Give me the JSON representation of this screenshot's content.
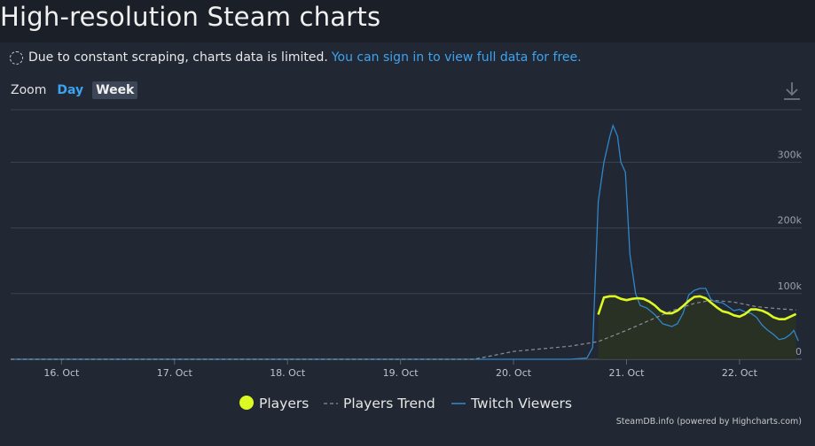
{
  "page": {
    "title": "High-resolution Steam charts"
  },
  "notice": {
    "text": "Due to constant scraping, charts data is limited.",
    "link": "You can sign in to view full data for free."
  },
  "zoom": {
    "label": "Zoom",
    "day": "Day",
    "week": "Week",
    "selected": "Week"
  },
  "icons": {
    "download": "download-icon",
    "notice": "loading-circle-icon"
  },
  "credit": "SteamDB.info (powered by Highcharts.com)",
  "colors": {
    "players": "#dcfa22",
    "trend": "#8a8f96",
    "twitch": "#2f86c9",
    "link": "#3da3f0",
    "background": "#1b2028",
    "plot": "#212833"
  },
  "chart_data": {
    "type": "line",
    "x_ticks": [
      "16. Oct",
      "17. Oct",
      "18. Oct",
      "19. Oct",
      "20. Oct",
      "21. Oct",
      "22. Oct"
    ],
    "y_ticks": [
      "0",
      "100k",
      "200k",
      "300k"
    ],
    "ylim": [
      0,
      380000
    ],
    "xlim": [
      15.55,
      22.55
    ],
    "grid": true,
    "legend": "bottom",
    "series": [
      {
        "name": "Players",
        "style": "line-area",
        "points": [
          [
            20.75,
            68000
          ],
          [
            20.8,
            94000
          ],
          [
            20.85,
            96000
          ],
          [
            20.9,
            96000
          ],
          [
            20.95,
            92000
          ],
          [
            21.0,
            90000
          ],
          [
            21.05,
            92000
          ],
          [
            21.1,
            93000
          ],
          [
            21.15,
            92000
          ],
          [
            21.2,
            88000
          ],
          [
            21.25,
            82000
          ],
          [
            21.3,
            74000
          ],
          [
            21.35,
            70000
          ],
          [
            21.4,
            70000
          ],
          [
            21.45,
            74000
          ],
          [
            21.5,
            81000
          ],
          [
            21.55,
            89000
          ],
          [
            21.6,
            95000
          ],
          [
            21.65,
            96000
          ],
          [
            21.7,
            93000
          ],
          [
            21.75,
            86000
          ],
          [
            21.8,
            79000
          ],
          [
            21.85,
            73000
          ],
          [
            21.9,
            71000
          ],
          [
            21.95,
            67000
          ],
          [
            22.0,
            65000
          ],
          [
            22.05,
            69000
          ],
          [
            22.1,
            76000
          ],
          [
            22.15,
            76000
          ],
          [
            22.2,
            74000
          ],
          [
            22.25,
            70000
          ],
          [
            22.3,
            64000
          ],
          [
            22.35,
            61000
          ],
          [
            22.4,
            61000
          ],
          [
            22.45,
            65000
          ],
          [
            22.5,
            69000
          ]
        ]
      },
      {
        "name": "Players Trend",
        "style": "dashed",
        "points": [
          [
            15.55,
            0
          ],
          [
            19.65,
            0
          ],
          [
            20.0,
            12000
          ],
          [
            20.5,
            20000
          ],
          [
            20.75,
            27000
          ],
          [
            21.0,
            44000
          ],
          [
            21.2,
            59000
          ],
          [
            21.4,
            74000
          ],
          [
            21.6,
            85000
          ],
          [
            21.75,
            90000
          ],
          [
            21.95,
            87000
          ],
          [
            22.15,
            80000
          ],
          [
            22.35,
            77000
          ],
          [
            22.5,
            75000
          ]
        ]
      },
      {
        "name": "Twitch Viewers",
        "style": "line",
        "points": [
          [
            15.55,
            0
          ],
          [
            20.5,
            0
          ],
          [
            20.65,
            2000
          ],
          [
            20.7,
            18000
          ],
          [
            20.75,
            240000
          ],
          [
            20.8,
            300000
          ],
          [
            20.85,
            338000
          ],
          [
            20.88,
            356000
          ],
          [
            20.92,
            340000
          ],
          [
            20.95,
            300000
          ],
          [
            20.99,
            285000
          ],
          [
            21.03,
            160000
          ],
          [
            21.08,
            100000
          ],
          [
            21.12,
            82000
          ],
          [
            21.18,
            78000
          ],
          [
            21.25,
            68000
          ],
          [
            21.32,
            54000
          ],
          [
            21.4,
            50000
          ],
          [
            21.45,
            54000
          ],
          [
            21.5,
            70000
          ],
          [
            21.55,
            98000
          ],
          [
            21.6,
            105000
          ],
          [
            21.65,
            108000
          ],
          [
            21.7,
            108000
          ],
          [
            21.75,
            90000
          ],
          [
            21.8,
            87000
          ],
          [
            21.85,
            86000
          ],
          [
            21.9,
            80000
          ],
          [
            21.95,
            74000
          ],
          [
            22.0,
            76000
          ],
          [
            22.05,
            72000
          ],
          [
            22.1,
            70000
          ],
          [
            22.15,
            64000
          ],
          [
            22.2,
            52000
          ],
          [
            22.25,
            44000
          ],
          [
            22.3,
            38000
          ],
          [
            22.35,
            30000
          ],
          [
            22.4,
            32000
          ],
          [
            22.45,
            38000
          ],
          [
            22.48,
            44000
          ],
          [
            22.52,
            28000
          ]
        ]
      }
    ]
  }
}
